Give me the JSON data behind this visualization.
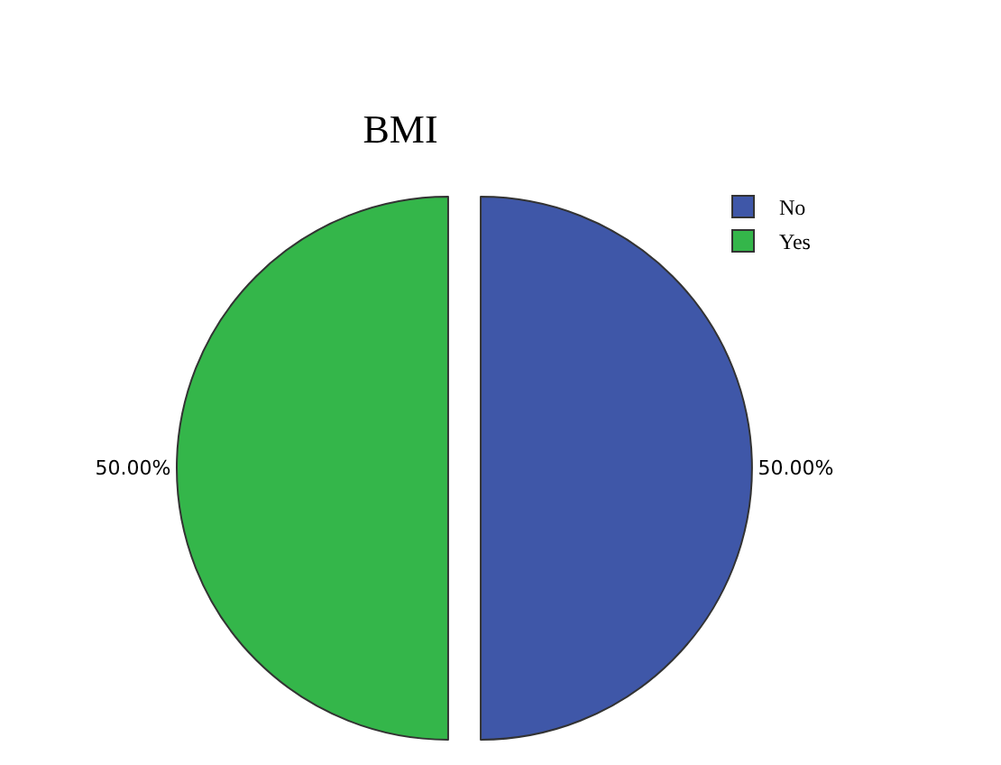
{
  "chart_data": {
    "type": "pie",
    "title": "BMI",
    "categories": [
      "No",
      "Yes"
    ],
    "values": [
      50,
      50
    ],
    "colors": [
      "#3f57a8",
      "#34b64a"
    ],
    "value_labels": [
      "50.00%",
      "50.00%"
    ],
    "legend": "top right"
  }
}
